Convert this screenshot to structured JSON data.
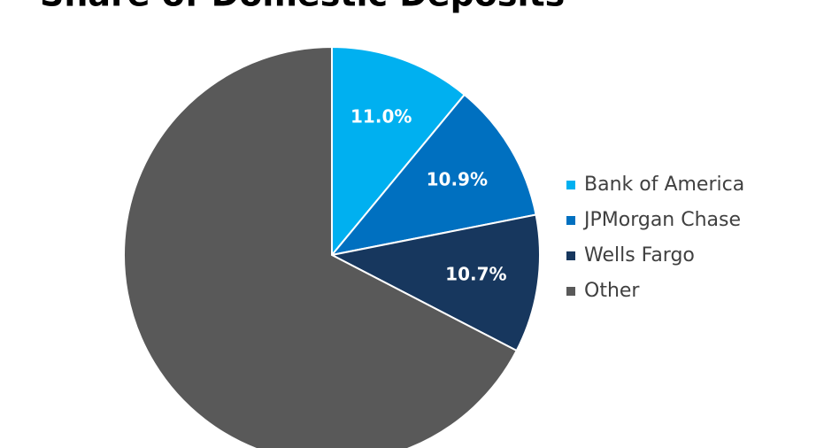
{
  "chart_data": {
    "type": "pie",
    "title": "Share of Domestic Deposits",
    "categories": [
      "Bank of America",
      "JPMorgan Chase",
      "Wells Fargo",
      "Other"
    ],
    "values": [
      11.0,
      10.9,
      10.7,
      67.4
    ],
    "value_labels": [
      "11.0%",
      "10.9%",
      "10.7%",
      null
    ],
    "colors": [
      "#00b0f0",
      "#0070c0",
      "#17375e",
      "#595959"
    ],
    "legend": "right"
  }
}
